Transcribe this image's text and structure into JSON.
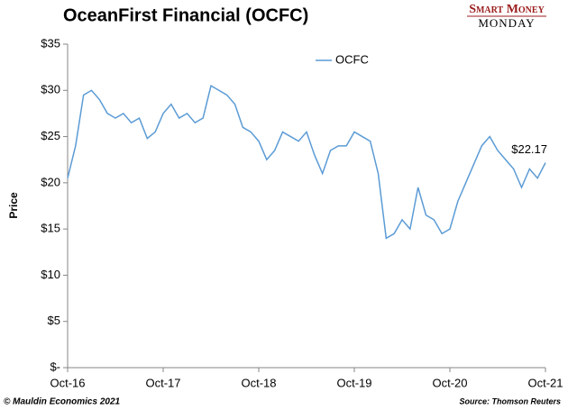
{
  "chart_data": {
    "type": "line",
    "title": "OceanFirst Financial (OCFC)",
    "y_label": "Price",
    "logo": {
      "line1": "Smart Money",
      "line2": "MONDAY"
    },
    "footer_left": "© Mauldin Economics 2021",
    "footer_right": "Source: Thomson Reuters",
    "annotation": "$22.17",
    "categories": [
      "Oct-16",
      null,
      null,
      null,
      null,
      null,
      null,
      null,
      null,
      null,
      null,
      null,
      "Oct-17",
      null,
      null,
      null,
      null,
      null,
      null,
      null,
      null,
      null,
      null,
      null,
      "Oct-18",
      null,
      null,
      null,
      null,
      null,
      null,
      null,
      null,
      null,
      null,
      null,
      "Oct-19",
      null,
      null,
      null,
      null,
      null,
      null,
      null,
      null,
      null,
      null,
      null,
      "Oct-20",
      null,
      null,
      null,
      null,
      null,
      null,
      null,
      null,
      null,
      null,
      null,
      "Oct-21"
    ],
    "series": [
      {
        "name": "OCFC",
        "color": "#5b9bd5",
        "values": [
          20.5,
          24,
          29.5,
          30,
          29,
          27.5,
          27,
          27.5,
          26.5,
          27,
          24.8,
          25.5,
          27.5,
          28.5,
          27,
          27.5,
          26.5,
          27,
          30.5,
          30,
          29.5,
          28.5,
          26,
          25.5,
          24.5,
          22.5,
          23.5,
          25.5,
          25,
          24.5,
          25.5,
          23,
          21,
          23.5,
          24,
          24,
          25.5,
          25,
          24.5,
          21,
          14,
          14.5,
          16,
          15,
          19.5,
          16.5,
          16,
          14.5,
          15,
          18,
          20,
          22,
          24,
          25,
          23.5,
          22.5,
          21.5,
          19.5,
          21.5,
          20.5,
          22.17
        ]
      }
    ],
    "ylim": [
      0,
      35
    ],
    "yticks": [
      {
        "value": 0,
        "label": "$-"
      },
      {
        "value": 5,
        "label": "$5"
      },
      {
        "value": 10,
        "label": "$10"
      },
      {
        "value": 15,
        "label": "$15"
      },
      {
        "value": 20,
        "label": "$20"
      },
      {
        "value": 25,
        "label": "$25"
      },
      {
        "value": 30,
        "label": "$30"
      },
      {
        "value": 35,
        "label": "$35"
      }
    ],
    "grid": false,
    "legend": "top"
  }
}
